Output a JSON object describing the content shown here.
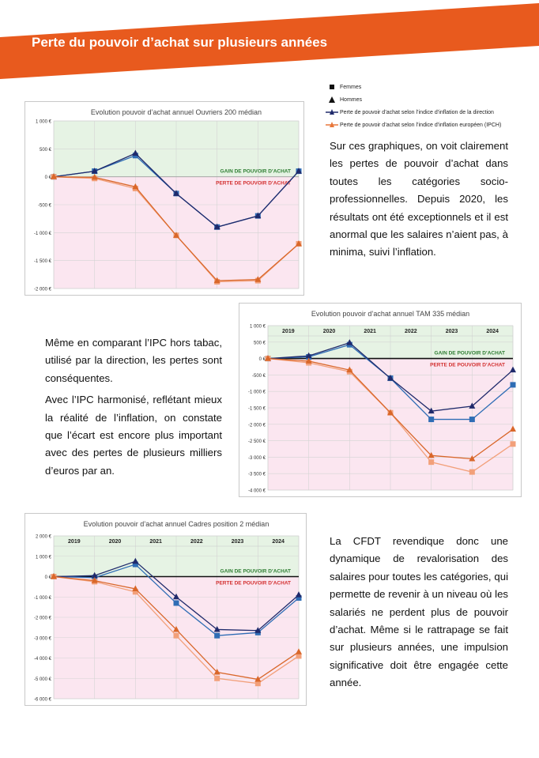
{
  "banner": {
    "title": "Perte du pouvoir d’achat sur plusieurs années",
    "color": "#E85A1E"
  },
  "legend": {
    "items": [
      {
        "label": "Femmes",
        "symbol": "square"
      },
      {
        "label": "Hommes",
        "symbol": "triangle"
      },
      {
        "label": "Perte de pouvoir d’achat selon l’indice d’inflation de la direction",
        "symbol": "line-triangle",
        "color": "#1F2A6B"
      },
      {
        "label": "Perte de pouvoir d’achat selon l’indice d’inflation européen (IPCH)",
        "symbol": "line-triangle",
        "color": "#E8773A"
      }
    ]
  },
  "paragraphs": {
    "p1": "Sur ces graphiques, on voit clairement les pertes de pouvoir d’achat dans toutes les catégories socio-professionnelles. Depuis 2020, les résultats ont été exceptionnels et il est anormal que les salaires n’aient pas, à minima, suivi l’inflation.",
    "p2": "Même en comparant l’IPC hors tabac, utilisé par la direction, les pertes sont conséquentes.",
    "p3": "Avec l’IPC harmonisé, reflétant mieux la réalité de l’inflation, on constate que l’écart est encore plus important avec des pertes de plusieurs milliers d’euros par an.",
    "p4": "La CFDT revendique donc une dynamique de revalorisation des salaires pour toutes les catégories, qui permette de revenir à un niveau où les salariés ne perdent plus de pouvoir d’achat. Même si le rattrapage se fait sur plusieurs années, une impulsion significative doit être engagée cette année."
  },
  "colors": {
    "gain_bg": "#E6F3E4",
    "loss_bg": "#FBE6F0",
    "direction_men": "#1F2A6B",
    "direction_women": "#2F6DB5",
    "ipch_men": "#D9672A",
    "ipch_women": "#F2A07A",
    "gain_text": "#2E7D32",
    "loss_text": "#D32F2F"
  },
  "chart_data": [
    {
      "type": "line",
      "title": "Evolution pouvoir d’achat annuel Ouvriers 200 médian",
      "gain_label": "GAIN DE POUVOIR D’ACHAT",
      "loss_label": "PERTE DE POUVOIR D’ACHAT",
      "years": [],
      "ylim": [
        -2000,
        1000
      ],
      "yticks": [
        1000,
        500,
        0,
        -500,
        -1000,
        -1500,
        -2000
      ],
      "ytick_labels": [
        "1 000 €",
        "500 €",
        "0 €",
        "-500 €",
        "-1 000 €",
        "-1 500 €",
        "-2 000 €"
      ],
      "x": [
        0,
        1,
        2,
        3,
        4,
        5,
        6
      ],
      "series": [
        {
          "name": "Direction Femmes",
          "values": [
            0,
            100,
            380,
            -300,
            -900,
            -700,
            100
          ]
        },
        {
          "name": "Direction Hommes",
          "values": [
            0,
            100,
            420,
            -300,
            -900,
            -700,
            100
          ]
        },
        {
          "name": "IPCH Femmes",
          "values": [
            0,
            -30,
            -210,
            -1050,
            -1880,
            -1860,
            -1200
          ]
        },
        {
          "name": "IPCH Hommes",
          "values": [
            0,
            -10,
            -180,
            -1050,
            -1860,
            -1840,
            -1200
          ]
        }
      ]
    },
    {
      "type": "line",
      "title": "Evolution pouvoir d’achat annuel TAM 335 médian",
      "gain_label": "GAIN DE POUVOIR D’ACHAT",
      "loss_label": "PERTE DE POUVOIR D’ACHAT",
      "years": [
        "2019",
        "2020",
        "2021",
        "2022",
        "2023",
        "2024"
      ],
      "ylim": [
        -4000,
        1000
      ],
      "yticks": [
        1000,
        500,
        0,
        -500,
        -1000,
        -1500,
        -2000,
        -2500,
        -3000,
        -3500,
        -4000
      ],
      "ytick_labels": [
        "1 000 €",
        "500 €",
        "0 €",
        "-500 €",
        "-1 000 €",
        "-1 500 €",
        "-2 000 €",
        "-2 500 €",
        "-3 000 €",
        "-3 500 €",
        "-4 000 €"
      ],
      "x": [
        0,
        1,
        2,
        3,
        4,
        5,
        6
      ],
      "series": [
        {
          "name": "Direction Femmes",
          "values": [
            0,
            50,
            420,
            -600,
            -1850,
            -1850,
            -800
          ]
        },
        {
          "name": "Direction Hommes",
          "values": [
            0,
            80,
            480,
            -600,
            -1600,
            -1450,
            -350
          ]
        },
        {
          "name": "IPCH Femmes",
          "values": [
            0,
            -130,
            -400,
            -1650,
            -3150,
            -3450,
            -2600
          ]
        },
        {
          "name": "IPCH Hommes",
          "values": [
            0,
            -80,
            -350,
            -1650,
            -2950,
            -3050,
            -2150
          ]
        }
      ]
    },
    {
      "type": "line",
      "title": "Evolution pouvoir d’achat annuel Cadres position 2 médian",
      "gain_label": "GAIN DE POUVOIR D’ACHAT",
      "loss_label": "PERTE DE POUVOIR D’ACHAT",
      "years": [
        "2019",
        "2020",
        "2021",
        "2022",
        "2023",
        "2024"
      ],
      "ylim": [
        -6000,
        2000
      ],
      "yticks": [
        2000,
        1000,
        0,
        -1000,
        -2000,
        -3000,
        -4000,
        -5000,
        -6000
      ],
      "ytick_labels": [
        "2 000 €",
        "1 000 €",
        "0 €",
        "-1 000 €",
        "-2 000 €",
        "-3 000 €",
        "-4 000 €",
        "-5 000 €",
        "-6 000 €"
      ],
      "x": [
        0,
        1,
        2,
        3,
        4,
        5,
        6
      ],
      "series": [
        {
          "name": "Direction Femmes",
          "values": [
            0,
            -50,
            600,
            -1300,
            -2900,
            -2750,
            -1050
          ]
        },
        {
          "name": "Direction Hommes",
          "values": [
            0,
            50,
            750,
            -1000,
            -2600,
            -2650,
            -900
          ]
        },
        {
          "name": "IPCH Femmes",
          "values": [
            0,
            -250,
            -750,
            -2900,
            -5000,
            -5250,
            -3900
          ]
        },
        {
          "name": "IPCH Hommes",
          "values": [
            0,
            -200,
            -600,
            -2600,
            -4700,
            -5050,
            -3700
          ]
        }
      ]
    }
  ]
}
